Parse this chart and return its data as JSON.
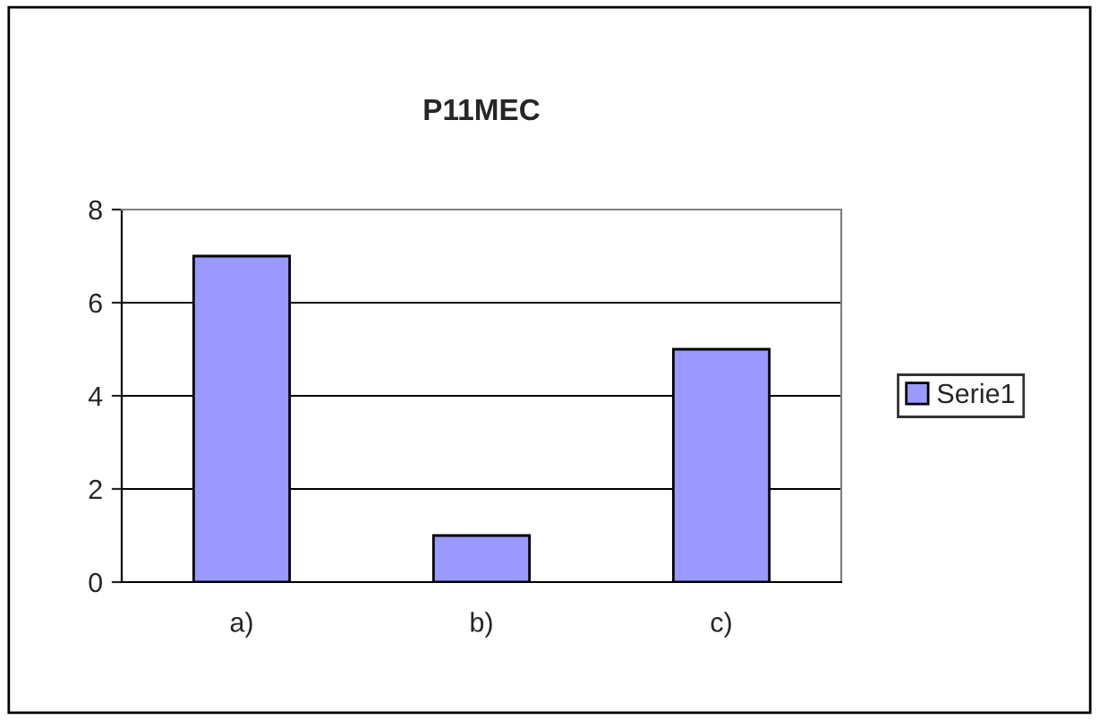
{
  "chart_data": {
    "type": "bar",
    "title": "P11MEC",
    "categories": [
      "a)",
      "b)",
      "c)"
    ],
    "series": [
      {
        "name": "Serie1",
        "color": "#9999ff",
        "values": [
          7,
          1,
          5
        ]
      }
    ],
    "ylim": [
      0,
      8
    ],
    "yticks": [
      0,
      2,
      4,
      6,
      8
    ],
    "grid": "y",
    "legend": "right"
  }
}
